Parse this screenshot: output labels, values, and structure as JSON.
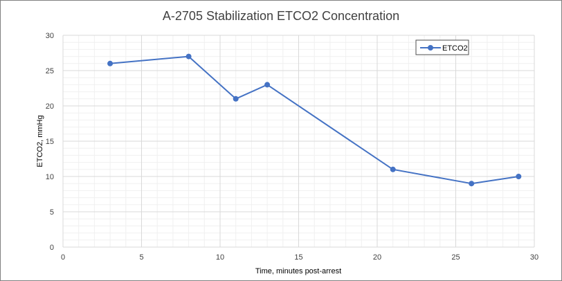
{
  "chart_data": {
    "type": "scatter",
    "title": "A-2705 Stabilization ETCO2 Concentration",
    "xlabel": "Time, minutes post-arrest",
    "ylabel": "ETCO2, mmHg",
    "xlim": [
      0,
      30
    ],
    "ylim": [
      0,
      30
    ],
    "x_major_step": 5,
    "y_major_step": 5,
    "x_minor_step": 1,
    "y_minor_step": 1,
    "grid": true,
    "legend_position": "top-right",
    "series": [
      {
        "name": "ETCO2",
        "color": "#4472c4",
        "x": [
          3,
          8,
          11,
          13,
          21,
          26,
          29
        ],
        "y": [
          26,
          27,
          21,
          23,
          11,
          9,
          10
        ]
      }
    ]
  }
}
